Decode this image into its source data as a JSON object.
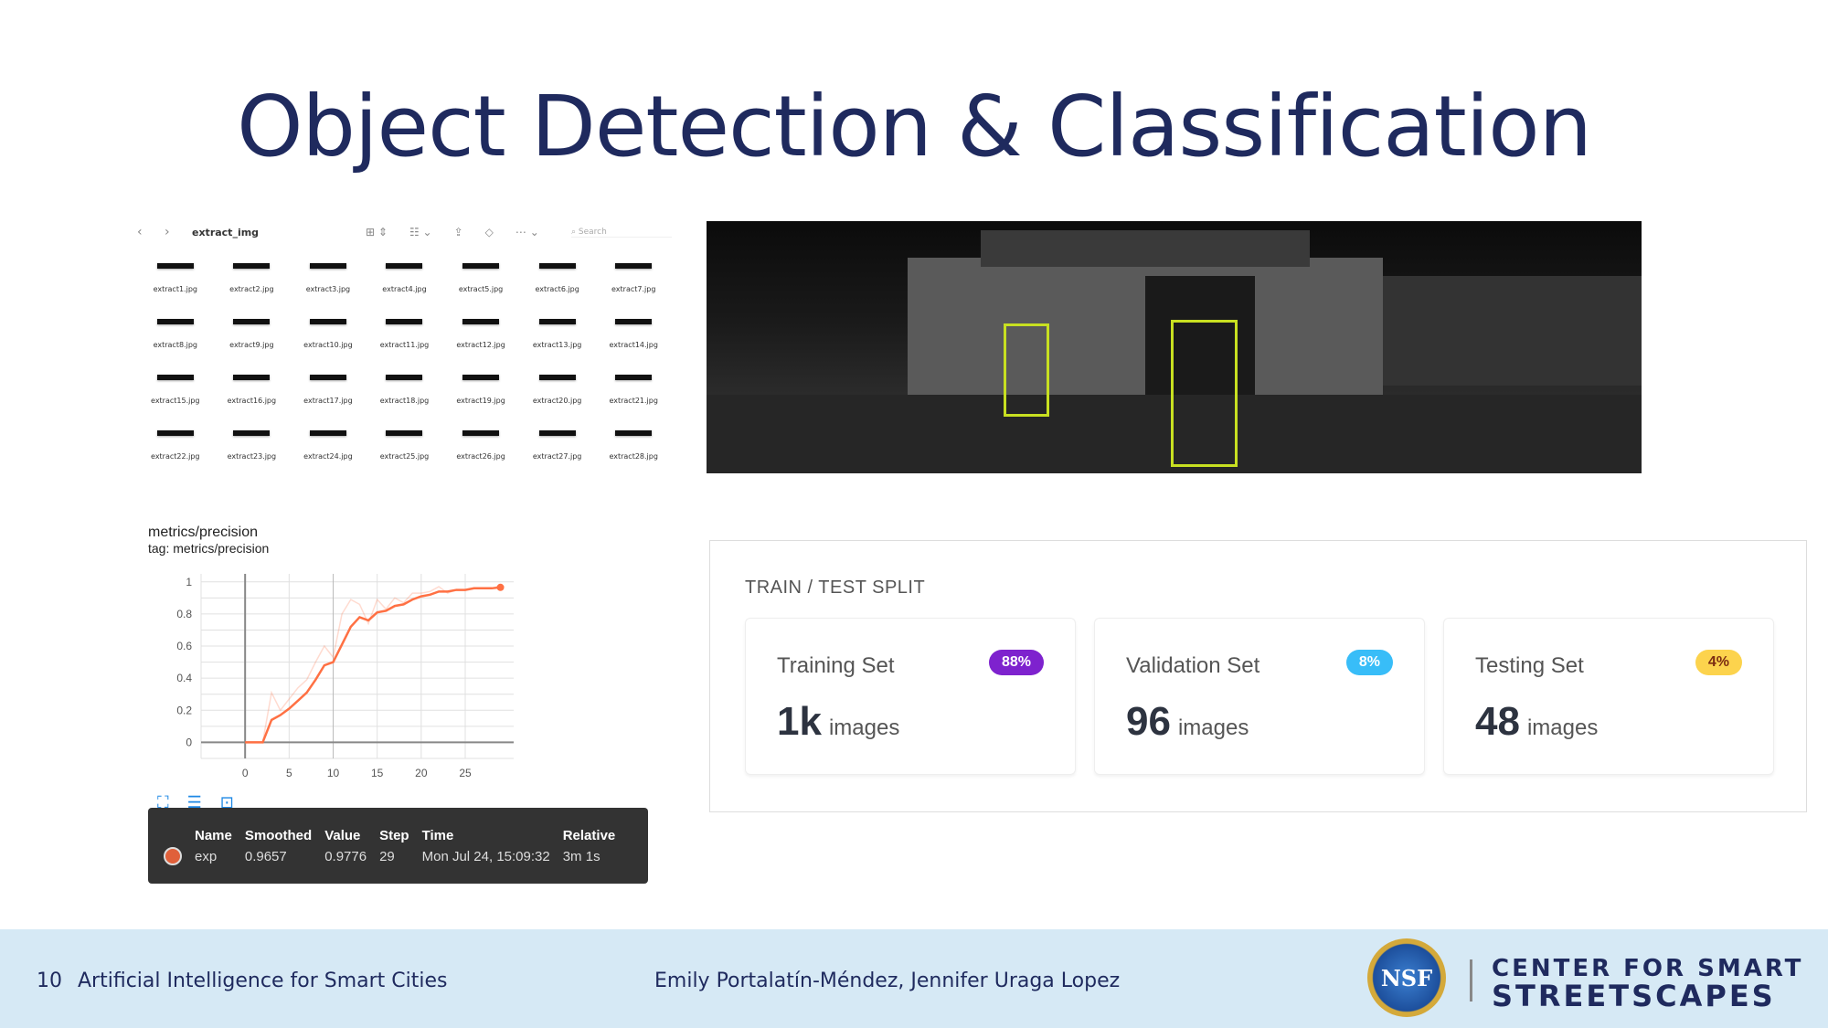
{
  "slide": {
    "title": "Object Detection & Classification"
  },
  "finder": {
    "folder": "extract_img",
    "search_placeholder": "Search",
    "files": [
      "extract1.jpg",
      "extract2.jpg",
      "extract3.jpg",
      "extract4.jpg",
      "extract5.jpg",
      "extract6.jpg",
      "extract7.jpg",
      "extract8.jpg",
      "extract9.jpg",
      "extract10.jpg",
      "extract11.jpg",
      "extract12.jpg",
      "extract13.jpg",
      "extract14.jpg",
      "extract15.jpg",
      "extract16.jpg",
      "extract17.jpg",
      "extract18.jpg",
      "extract19.jpg",
      "extract20.jpg",
      "extract21.jpg",
      "extract22.jpg",
      "extract23.jpg",
      "extract24.jpg",
      "extract25.jpg",
      "extract26.jpg",
      "extract27.jpg",
      "extract28.jpg"
    ]
  },
  "detection": {
    "box_color": "#c8e021",
    "boxes": 2
  },
  "chart_data": {
    "type": "line",
    "title": "metrics/precision",
    "subtitle": "tag: metrics/precision",
    "xlim": [
      -5,
      30.5
    ],
    "ylim": [
      -0.1,
      1.05
    ],
    "xticks": [
      0,
      5,
      10,
      15,
      20,
      25
    ],
    "yticks": [
      0,
      0.2,
      0.4,
      0.6,
      0.8,
      1
    ],
    "ytick_labels": [
      "0",
      "0.2",
      "0.4",
      "0.6",
      "0.8",
      "1"
    ],
    "grid": true,
    "color": "#ff7043",
    "x": [
      0,
      1,
      2,
      3,
      4,
      5,
      6,
      7,
      8,
      9,
      10,
      11,
      12,
      13,
      14,
      15,
      16,
      17,
      18,
      19,
      20,
      21,
      22,
      23,
      24,
      25,
      26,
      27,
      28,
      29
    ],
    "series": [
      {
        "role": "raw",
        "values": [
          0,
          0,
          0,
          0.31,
          0.2,
          0.27,
          0.34,
          0.39,
          0.5,
          0.6,
          0.53,
          0.8,
          0.89,
          0.86,
          0.74,
          0.89,
          0.83,
          0.9,
          0.87,
          0.93,
          0.93,
          0.94,
          0.97,
          0.93,
          0.95,
          0.95,
          0.96,
          0.96,
          0.96,
          0.9776
        ]
      },
      {
        "role": "smoothed",
        "values": [
          0,
          0,
          0,
          0.14,
          0.17,
          0.21,
          0.26,
          0.31,
          0.39,
          0.48,
          0.5,
          0.61,
          0.72,
          0.78,
          0.76,
          0.81,
          0.82,
          0.85,
          0.86,
          0.89,
          0.91,
          0.92,
          0.94,
          0.94,
          0.95,
          0.95,
          0.96,
          0.96,
          0.96,
          0.9657
        ]
      }
    ]
  },
  "tooltip": {
    "headers": [
      "Name",
      "Smoothed",
      "Value",
      "Step",
      "Time",
      "Relative"
    ],
    "row": [
      "exp",
      "0.9657",
      "0.9776",
      "29",
      "Mon Jul 24, 15:09:32",
      "3m 1s"
    ],
    "run_color": "#e0603a"
  },
  "split": {
    "title": "TRAIN / TEST SPLIT",
    "cards": [
      {
        "label": "Training Set",
        "badge": "88%",
        "count": "1k",
        "unit": "images",
        "badge_bg": "#7e22ce",
        "badge_fg": "#ffffff"
      },
      {
        "label": "Validation Set",
        "badge": "8%",
        "count": "96",
        "unit": "images",
        "badge_bg": "#38bdf8",
        "badge_fg": "#ffffff"
      },
      {
        "label": "Testing Set",
        "badge": "4%",
        "count": "48",
        "unit": "images",
        "badge_bg": "#fcd34d",
        "badge_fg": "#7c2d12"
      }
    ]
  },
  "footer": {
    "page": "10",
    "course": "Artificial Intelligence for Smart Cities",
    "authors": "Emily Portalatín-Méndez,  Jennifer Uraga Lopez",
    "logo_nsf": "NSF",
    "center_line1": "CENTER FOR SMART",
    "center_line2": "STREETSCAPES"
  }
}
